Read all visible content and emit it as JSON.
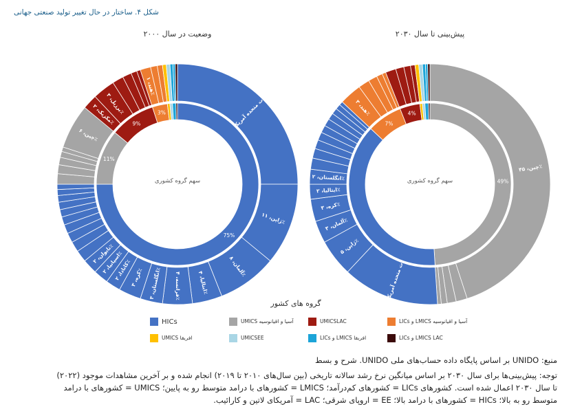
{
  "figure_title": "شکل ۴. ساختار در حال تغییر تولید صنعتی جهانی",
  "chart_data": [
    {
      "type": "donut",
      "title": "وضعیت در سال ۲۰۰۰",
      "center_label": "سهم گروه کشوری",
      "inner": {
        "values": [
          75,
          11,
          9,
          3,
          0.5,
          0.5,
          0.7,
          0.3
        ],
        "value_labels": [
          "75%",
          "11%",
          "9%",
          "3%",
          null,
          null,
          null,
          null
        ],
        "groups": [
          0,
          1,
          2,
          3,
          4,
          5,
          6,
          7
        ]
      },
      "outer": {
        "labels": [
          "ایالات متحده آمریکا، ۲۵٪",
          "ژاپن، ۱۱٪",
          "آلمان، ۸٪",
          "ایتالیا، ۴٪",
          "فرانسه، ۴٪",
          "انگلستان، ۳٪",
          "کره، ۳٪",
          "کانادا، ۲٪",
          "اسپانیا، ۲٪",
          "تایوان، ۲٪",
          null,
          null,
          null,
          null,
          null,
          null,
          null,
          null,
          null,
          null,
          null,
          null,
          null,
          null,
          null,
          "چین، ۶٪",
          "مکزیک، ۲٪",
          "برزیل، ۳٪",
          null,
          null,
          null,
          null,
          "هند، ۱٪",
          null,
          null,
          null,
          null,
          null,
          null,
          null
        ],
        "values": [
          25,
          11,
          8,
          4,
          4,
          3,
          3,
          2,
          2,
          2,
          1.6,
          1.4,
          1.3,
          1.2,
          1.1,
          1,
          1,
          0.9,
          0.8,
          0.7,
          1.4,
          1.2,
          1,
          0.8,
          0.6,
          6,
          2,
          3,
          1.5,
          1.2,
          0.8,
          0.5,
          1.4,
          0.9,
          0.7,
          0.5,
          0.5,
          0.4,
          0.3,
          0.3
        ],
        "groups": [
          0,
          0,
          0,
          0,
          0,
          0,
          0,
          0,
          0,
          0,
          0,
          0,
          0,
          0,
          0,
          0,
          0,
          0,
          0,
          0,
          1,
          1,
          1,
          1,
          1,
          1,
          2,
          2,
          2,
          2,
          2,
          2,
          3,
          3,
          3,
          4,
          5,
          6,
          6,
          7
        ]
      }
    },
    {
      "type": "donut",
      "title": "پیش‌بینی تا سال ۲۰۳۰",
      "center_label": "سهم گروه کشوری",
      "inner": {
        "values": [
          49,
          38,
          7,
          4,
          0.5,
          0.5,
          0.7,
          0.3
        ],
        "value_labels": [
          "49%",
          null,
          "7%",
          "4%",
          null,
          null,
          null,
          null
        ],
        "groups": [
          1,
          0,
          3,
          2,
          4,
          5,
          6,
          7
        ]
      },
      "outer": {
        "labels": [
          "چین، ۴۵٪",
          null,
          null,
          null,
          null,
          "ایالات متحده آمریکا، ۱۳٪",
          "ژاپن، ۵٪",
          "آلمان، ۳٪",
          "کره، ۳٪",
          "ایتالیا، ۲٪",
          "انگلستان، ۲٪",
          null,
          null,
          null,
          null,
          null,
          null,
          null,
          null,
          null,
          null,
          "هند، ۳٪",
          null,
          null,
          null,
          null,
          null,
          null,
          null,
          null,
          null,
          null,
          null,
          null,
          null
        ],
        "values": [
          45,
          1.5,
          1.2,
          0.8,
          0.5,
          13,
          5,
          3,
          3,
          2,
          2,
          1.5,
          1.3,
          1.2,
          1.1,
          1,
          1,
          0.9,
          0.8,
          0.7,
          0.5,
          3,
          1.5,
          1.2,
          0.8,
          0.5,
          1.4,
          1.1,
          0.9,
          0.6,
          0.5,
          0.5,
          0.4,
          0.3,
          0.3
        ],
        "groups": [
          1,
          1,
          1,
          1,
          1,
          0,
          0,
          0,
          0,
          0,
          0,
          0,
          0,
          0,
          0,
          0,
          0,
          0,
          0,
          0,
          0,
          3,
          3,
          3,
          3,
          3,
          2,
          2,
          2,
          2,
          4,
          5,
          6,
          6,
          7
        ]
      }
    }
  ],
  "legend": {
    "title": "گروه های کشور",
    "names": [
      "HICs",
      "UMICS آسیا و اقیانوسیه",
      "UMICSLAC",
      "LICs و LMICS آسیا و اقیانوسیه",
      "UMICS افریقا",
      "UMICSEE",
      "LICs و LMICS افریقا",
      "LICs و LMICS LAC"
    ],
    "colors": [
      "#4472c4",
      "#a5a5a5",
      "#9e1b12",
      "#ed7d31",
      "#ffc000",
      "#a9d6e5",
      "#1ca4d8",
      "#3b0a0a"
    ]
  },
  "notes": [
    "منبع: UNIDO بر اساس پایگاه داده حساب‌های ملی UNIDO. شرح و بسط",
    "توجه: پیش‌بینی‌ها برای سال ۲۰۳۰ بر اساس میانگین نرخ رشد سالانه تاریخی (بین سال‌های ۲۰۱۰ تا ۲۰۱۹) انجام شده و بر آخرین مشاهدات موجود (۲۰۲۲)",
    "تا سال ۲۰۳۰ اعمال شده است. کشورهای LICs = کشورهای کم‌درآمد؛ LMICS = کشورهای با درامد متوسط رو به پایین؛ UMICS = کشورهای با درامد",
    "متوسط رو به بالا؛ HICs = کشورهای با درامد بالا؛ EE = اروپای شرقی؛ LAC = آمریکای لاتین و کارائیب."
  ]
}
